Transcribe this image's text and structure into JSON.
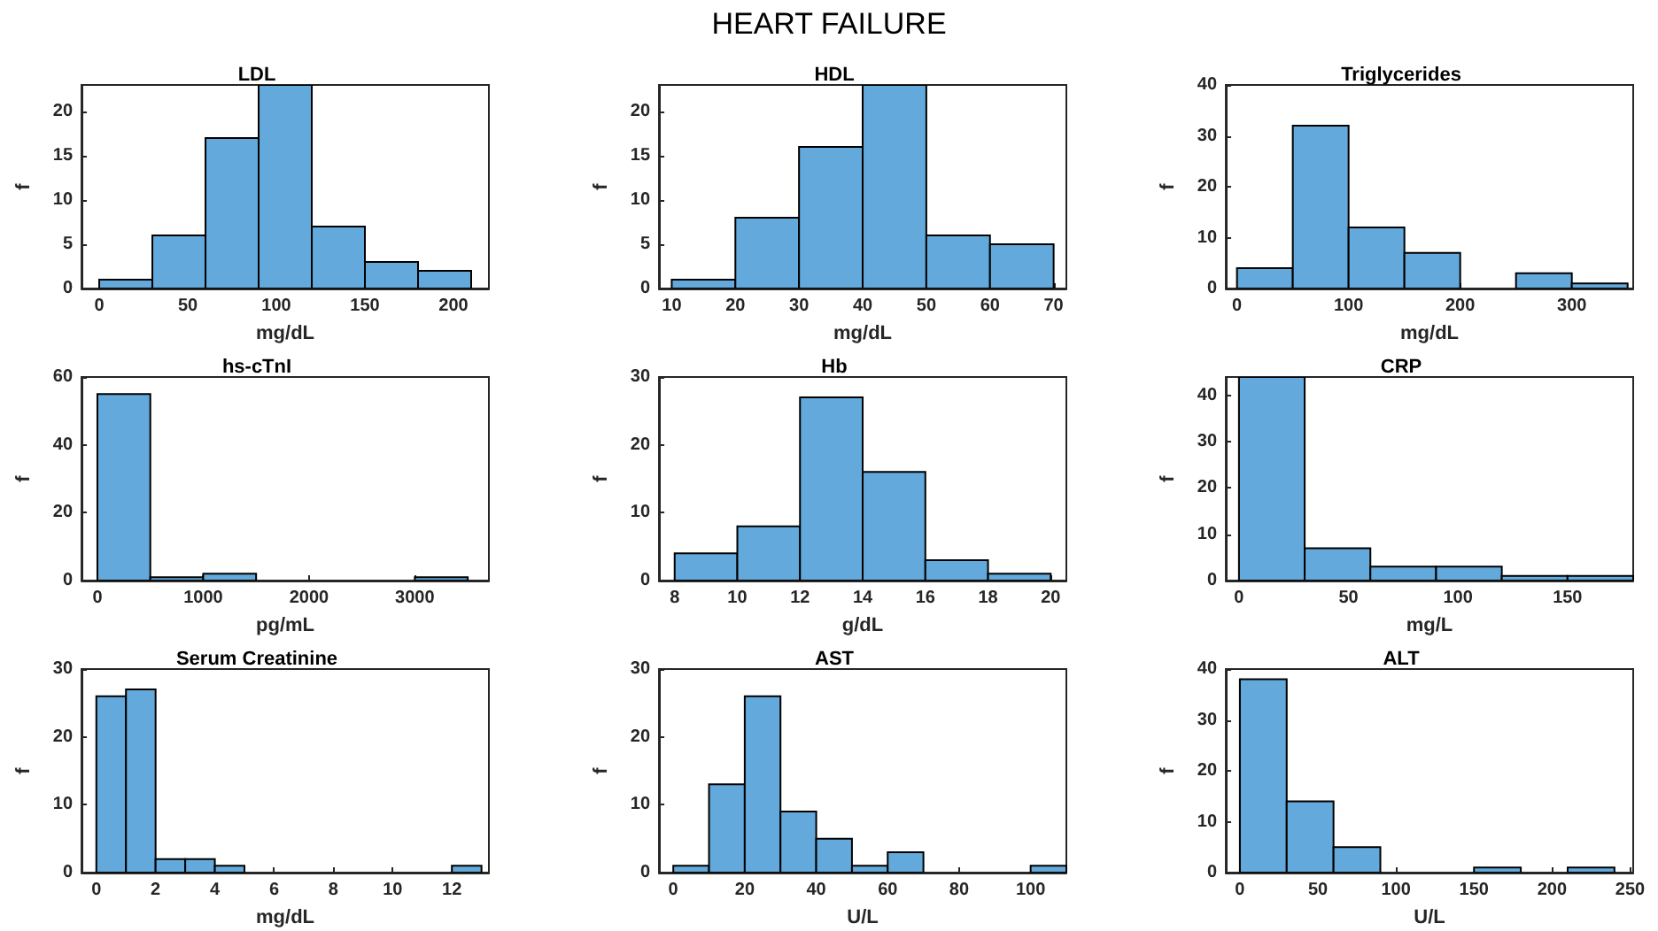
{
  "chart_data": [
    {
      "type": "other",
      "title": "HEART FAILURE"
    },
    {
      "type": "histogram",
      "title": "LDL",
      "xlabel": "mg/dL",
      "ylabel": "f",
      "color": "#63a9db",
      "bins": [
        0,
        30,
        60,
        90,
        120,
        150,
        180,
        210
      ],
      "values": [
        1,
        6,
        17,
        23,
        7,
        3,
        2
      ],
      "xlim": [
        -10,
        220
      ],
      "xticks": [
        0,
        50,
        100,
        150,
        200
      ],
      "ylim": [
        0,
        23
      ],
      "yticks": [
        0,
        5,
        10,
        15,
        20
      ]
    },
    {
      "type": "histogram",
      "title": "HDL",
      "xlabel": "mg/dL",
      "ylabel": "f",
      "color": "#63a9db",
      "bins": [
        10,
        20,
        30,
        40,
        50,
        60,
        70
      ],
      "values": [
        1,
        8,
        16,
        23,
        6,
        5
      ],
      "xlim": [
        8,
        72
      ],
      "xticks": [
        10,
        20,
        30,
        40,
        50,
        60,
        70
      ],
      "ylim": [
        0,
        23
      ],
      "yticks": [
        0,
        5,
        10,
        15,
        20
      ]
    },
    {
      "type": "histogram",
      "title": "Triglycerides",
      "xlabel": "mg/dL",
      "ylabel": "f",
      "color": "#63a9db",
      "bins": [
        0,
        50,
        100,
        150,
        200,
        250,
        300,
        350
      ],
      "values": [
        4,
        32,
        12,
        7,
        0,
        3,
        1
      ],
      "xlim": [
        -10,
        355
      ],
      "xticks": [
        0,
        100,
        200,
        300
      ],
      "ylim": [
        0,
        40
      ],
      "yticks": [
        0,
        10,
        20,
        30,
        40
      ]
    },
    {
      "type": "histogram",
      "title": "hs-cTnI",
      "xlabel": "pg/mL",
      "ylabel": "f",
      "color": "#63a9db",
      "bins": [
        0,
        500,
        1000,
        1500,
        2000,
        2500,
        3000,
        3500
      ],
      "values": [
        55,
        1,
        2,
        0,
        0,
        0,
        1
      ],
      "xlim": [
        -150,
        3700
      ],
      "xticks": [
        0,
        1000,
        2000,
        3000
      ],
      "ylim": [
        0,
        60
      ],
      "yticks": [
        0,
        20,
        40,
        60
      ]
    },
    {
      "type": "histogram",
      "title": "Hb",
      "xlabel": "g/dL",
      "ylabel": "f",
      "color": "#63a9db",
      "bins": [
        8,
        10,
        12,
        14,
        16,
        18,
        20
      ],
      "values": [
        4,
        8,
        27,
        16,
        3,
        1
      ],
      "xlim": [
        7.5,
        20.5
      ],
      "xticks": [
        8,
        10,
        12,
        14,
        16,
        18,
        20
      ],
      "ylim": [
        0,
        30
      ],
      "yticks": [
        0,
        10,
        20,
        30
      ]
    },
    {
      "type": "histogram",
      "title": "CRP",
      "xlabel": "mg/L",
      "ylabel": "f",
      "color": "#63a9db",
      "bins": [
        0,
        30,
        60,
        90,
        120,
        150,
        180
      ],
      "values": [
        44,
        7,
        3,
        3,
        1,
        1
      ],
      "xlim": [
        -6,
        180
      ],
      "xticks": [
        0,
        50,
        100,
        150
      ],
      "ylim": [
        0,
        44
      ],
      "yticks": [
        0,
        10,
        20,
        30,
        40
      ]
    },
    {
      "type": "histogram",
      "title": "Serum Creatinine",
      "xlabel": "mg/dL",
      "ylabel": "f",
      "color": "#63a9db",
      "bins": [
        0,
        1,
        2,
        3,
        4,
        5,
        6,
        7,
        8,
        9,
        10,
        11,
        12,
        13
      ],
      "values": [
        26,
        27,
        2,
        2,
        1,
        0,
        0,
        0,
        0,
        0,
        0,
        0,
        1
      ],
      "xlim": [
        -0.5,
        13.25
      ],
      "xticks": [
        0,
        2,
        4,
        6,
        8,
        10,
        12
      ],
      "ylim": [
        0,
        30
      ],
      "yticks": [
        0,
        10,
        20,
        30
      ]
    },
    {
      "type": "histogram",
      "title": "AST",
      "xlabel": "U/L",
      "ylabel": "f",
      "color": "#63a9db",
      "bins": [
        0,
        10,
        20,
        30,
        40,
        50,
        60,
        70,
        80,
        90,
        100,
        110
      ],
      "values": [
        1,
        13,
        26,
        9,
        5,
        1,
        3,
        0,
        0,
        0,
        1
      ],
      "xlim": [
        -4,
        110
      ],
      "xticks": [
        0,
        20,
        40,
        60,
        80,
        100
      ],
      "ylim": [
        0,
        30
      ],
      "yticks": [
        0,
        10,
        20,
        30
      ]
    },
    {
      "type": "histogram",
      "title": "ALT",
      "xlabel": "U/L",
      "ylabel": "f",
      "color": "#63a9db",
      "bins": [
        0,
        30,
        60,
        90,
        120,
        150,
        180,
        210,
        240
      ],
      "values": [
        38,
        14,
        5,
        0,
        0,
        1,
        0,
        1
      ],
      "xlim": [
        -9,
        252
      ],
      "xticks": [
        0,
        50,
        100,
        150,
        200,
        250
      ],
      "ylim": [
        0,
        40
      ],
      "yticks": [
        0,
        10,
        20,
        30,
        40
      ]
    }
  ]
}
